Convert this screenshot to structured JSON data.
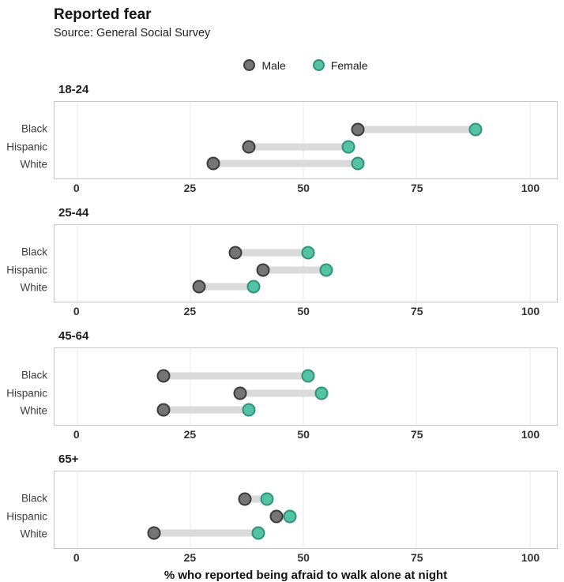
{
  "title": "Reported fear",
  "subtitle": "Source: General Social Survey",
  "legend": [
    {
      "label": "Male",
      "color": "#757575",
      "border": "#3b3b3b"
    },
    {
      "label": "Female",
      "color": "#54c2a4",
      "border": "#2f9379"
    }
  ],
  "axis": {
    "label": "% who reported being afraid to walk alone at night",
    "min": 0,
    "max": 100,
    "ticks": [
      0,
      25,
      50,
      75,
      100
    ],
    "pad_left": 5,
    "pad_right": 6
  },
  "chart_data": {
    "type": "dumbbell",
    "xlabel": "% who reported being afraid to walk alone at night",
    "xlim": [
      0,
      100
    ],
    "legend_position": "top-center",
    "grid": "vertical-major",
    "panels": [
      {
        "age": "18-24",
        "categories": [
          "Black",
          "Hispanic",
          "White"
        ],
        "series": [
          {
            "name": "Male",
            "values": [
              62,
              38,
              30
            ]
          },
          {
            "name": "Female",
            "values": [
              88,
              60,
              62
            ]
          }
        ]
      },
      {
        "age": "25-44",
        "categories": [
          "Black",
          "Hispanic",
          "White"
        ],
        "series": [
          {
            "name": "Male",
            "values": [
              35,
              41,
              27
            ]
          },
          {
            "name": "Female",
            "values": [
              51,
              55,
              39
            ]
          }
        ]
      },
      {
        "age": "45-64",
        "categories": [
          "Black",
          "Hispanic",
          "White"
        ],
        "series": [
          {
            "name": "Male",
            "values": [
              19,
              36,
              19
            ]
          },
          {
            "name": "Female",
            "values": [
              51,
              54,
              38
            ]
          }
        ]
      },
      {
        "age": "65+",
        "categories": [
          "Black",
          "Hispanic",
          "White"
        ],
        "series": [
          {
            "name": "Male",
            "values": [
              37,
              44,
              17
            ]
          },
          {
            "name": "Female",
            "values": [
              42,
              47,
              40
            ]
          }
        ]
      }
    ]
  }
}
